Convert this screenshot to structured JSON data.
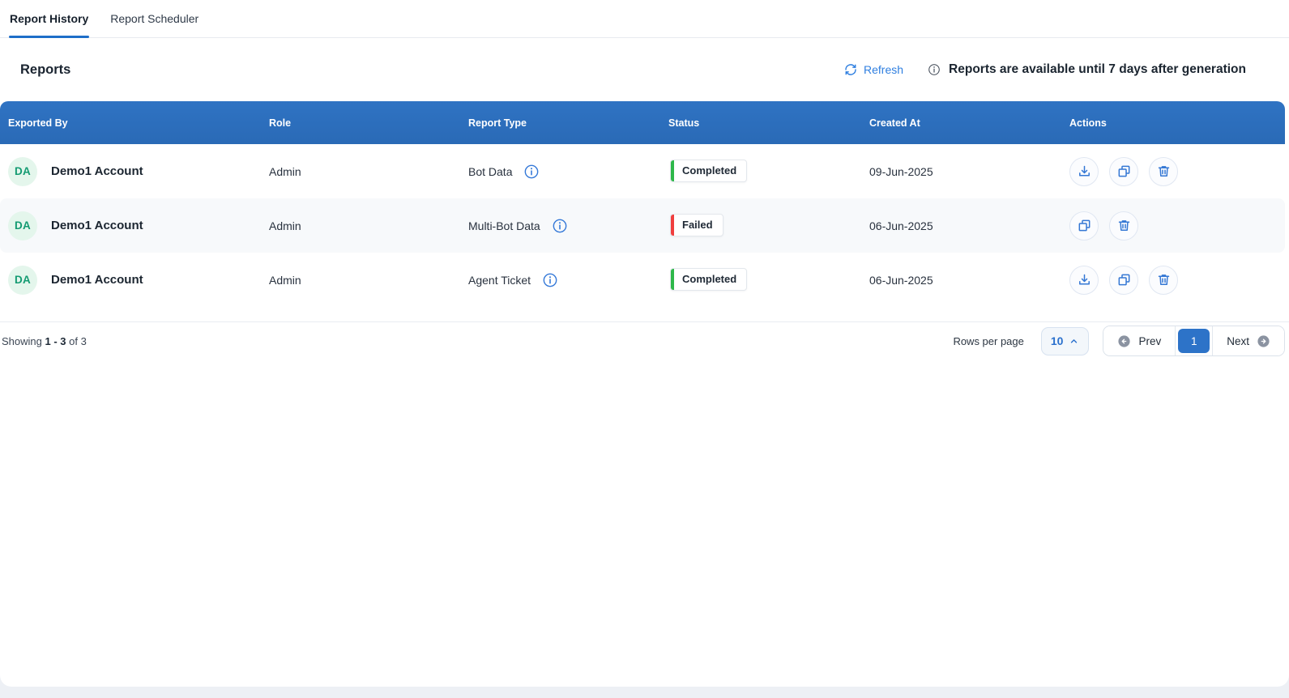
{
  "tabs": [
    {
      "label": "Report History",
      "active": true
    },
    {
      "label": "Report Scheduler",
      "active": false
    }
  ],
  "header": {
    "title": "Reports",
    "refresh_label": "Refresh",
    "notice": "Reports are available until 7 days after generation"
  },
  "table": {
    "columns": [
      "Exported By",
      "Role",
      "Report Type",
      "Status",
      "Created At",
      "Actions"
    ],
    "rows": [
      {
        "avatar_initials": "DA",
        "exported_by": "Demo1 Account",
        "role": "Admin",
        "report_type": "Bot Data",
        "status": "Completed",
        "status_color": "#2eb84a",
        "created_at": "09-Jun-2025",
        "actions": [
          "download",
          "copy",
          "delete"
        ]
      },
      {
        "avatar_initials": "DA",
        "exported_by": "Demo1 Account",
        "role": "Admin",
        "report_type": "Multi-Bot Data",
        "status": "Failed",
        "status_color": "#f03e3e",
        "created_at": "06-Jun-2025",
        "actions": [
          "copy",
          "delete"
        ]
      },
      {
        "avatar_initials": "DA",
        "exported_by": "Demo1 Account",
        "role": "Admin",
        "report_type": "Agent Ticket",
        "status": "Completed",
        "status_color": "#2eb84a",
        "created_at": "06-Jun-2025",
        "actions": [
          "download",
          "copy",
          "delete"
        ]
      }
    ]
  },
  "pagination": {
    "showing_prefix": "Showing",
    "showing_range": "1 - 3",
    "showing_suffix": "of 3",
    "rows_per_page_label": "Rows per page",
    "rows_per_page_value": "10",
    "prev_label": "Prev",
    "current_page": "1",
    "next_label": "Next"
  },
  "colors": {
    "header_blue": "#2d70c0",
    "link_blue": "#2f7fe0",
    "active_page_blue": "#2d73c8",
    "status_completed": "#2eb84a",
    "status_failed": "#f03e3e",
    "avatar_bg": "#e4f6ec",
    "avatar_text": "#149b72"
  },
  "icons": {
    "refresh-icon": "circular-sync-arrows",
    "info-icon": "circled-i",
    "download-icon": "arrow-down-into-tray",
    "copy-icon": "overlapping-squares",
    "delete-icon": "trash-can",
    "chevron-up-icon": "chevron-up",
    "prev-icon": "circle-arrow-left",
    "next-icon": "circle-arrow-right"
  }
}
